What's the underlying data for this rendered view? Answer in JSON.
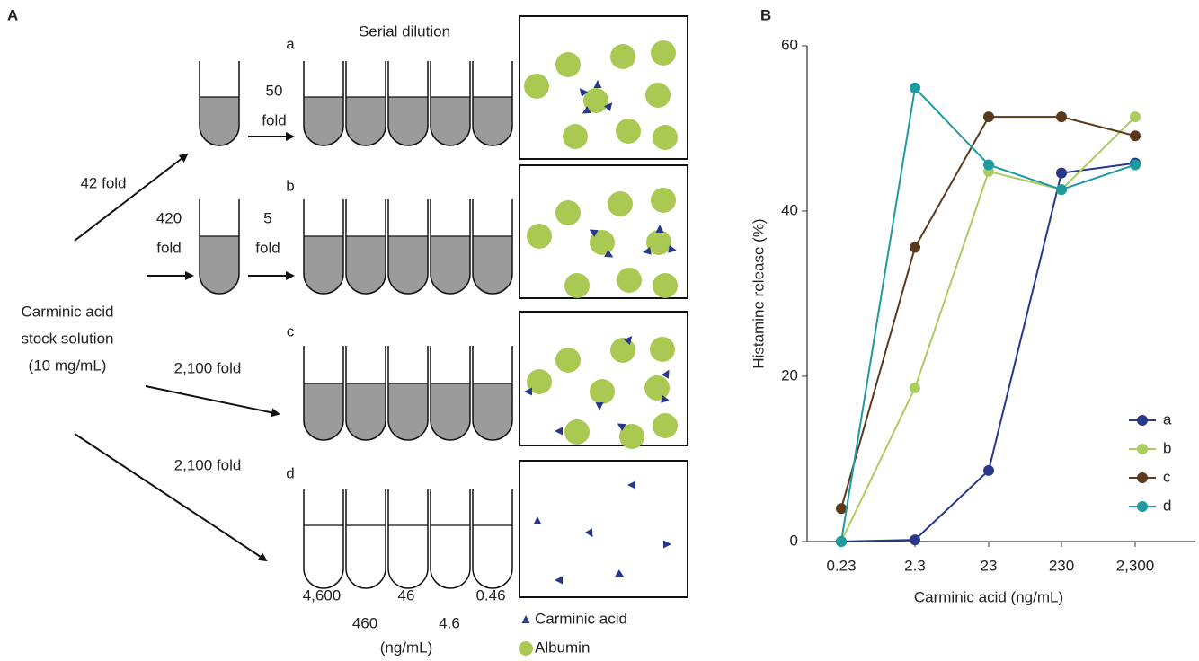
{
  "panel_a": {
    "label": "A",
    "title": "Serial dilution",
    "source": [
      "Carminic acid",
      "stock solution",
      "(10 mg/mL)"
    ],
    "arrows": {
      "a": [
        "42 fold"
      ],
      "a_serial": [
        "50",
        "fold"
      ],
      "b": [
        "420",
        "fold"
      ],
      "b_serial": [
        "5",
        "fold"
      ],
      "c": [
        "2,100 fold"
      ],
      "d": [
        "2,100 fold"
      ]
    },
    "rows": [
      "a",
      "b",
      "c",
      "d"
    ],
    "concentrations": [
      "4,600",
      "460",
      "46",
      "4.6",
      "0.46"
    ],
    "unit": "(ng/mL)",
    "legend": [
      "Carminic acid",
      "Albumin"
    ]
  },
  "chart_data": {
    "type": "line",
    "panel_label": "B",
    "x_label": "Carminic acid (ng/mL)",
    "y_label": "Histamine release (%)",
    "categories": [
      "0.23",
      "2.3",
      "23",
      "230",
      "2,300"
    ],
    "ylim": [
      0,
      60
    ],
    "yticks": [
      0,
      20,
      40,
      60
    ],
    "legend": "lower right",
    "series": [
      {
        "name": "a",
        "color": "#27388a",
        "values": [
          0,
          0.2,
          8.6,
          44.6,
          45.8
        ]
      },
      {
        "name": "b",
        "color": "#a9cd5e",
        "values": [
          0,
          18.6,
          44.8,
          42.6,
          51.4
        ]
      },
      {
        "name": "c",
        "color": "#5b3a1c",
        "values": [
          4.0,
          35.6,
          51.4,
          51.4,
          49.1
        ]
      },
      {
        "name": "d",
        "color": "#1e9aa0",
        "values": [
          0,
          54.9,
          45.6,
          42.6,
          45.6
        ]
      }
    ]
  }
}
